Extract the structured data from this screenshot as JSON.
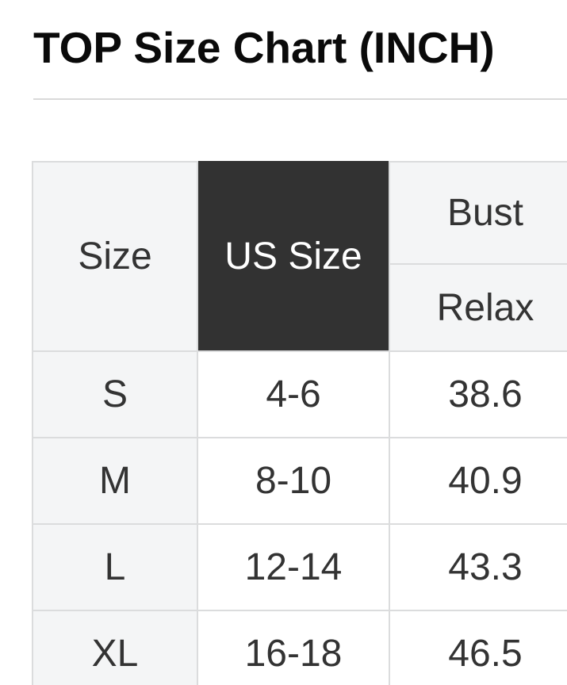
{
  "page": {
    "title": "TOP Size Chart (INCH)"
  },
  "table": {
    "header": {
      "size_label": "Size",
      "us_size_label": "US Size",
      "bust_label": "Bust",
      "bust_sub_label": "Relax"
    },
    "columns": [
      "Size",
      "US Size",
      "Bust Relax"
    ],
    "rows": [
      {
        "size": "S",
        "us_size": "4-6",
        "bust_relax": "38.6"
      },
      {
        "size": "M",
        "us_size": "8-10",
        "bust_relax": "40.9"
      },
      {
        "size": "L",
        "us_size": "12-14",
        "bust_relax": "43.3"
      },
      {
        "size": "XL",
        "us_size": "16-18",
        "bust_relax": "46.5"
      }
    ]
  },
  "theme": {
    "color_title": "#0a0a0a",
    "color_text": "#333333",
    "color_light_cell": "#f4f5f6",
    "color_dark_cell": "#323232",
    "color_dark_cell_text": "#ffffff",
    "color_border": "#dbdcdd",
    "color_divider": "#d9d9d9",
    "color_page_bg": "#ffffff"
  }
}
